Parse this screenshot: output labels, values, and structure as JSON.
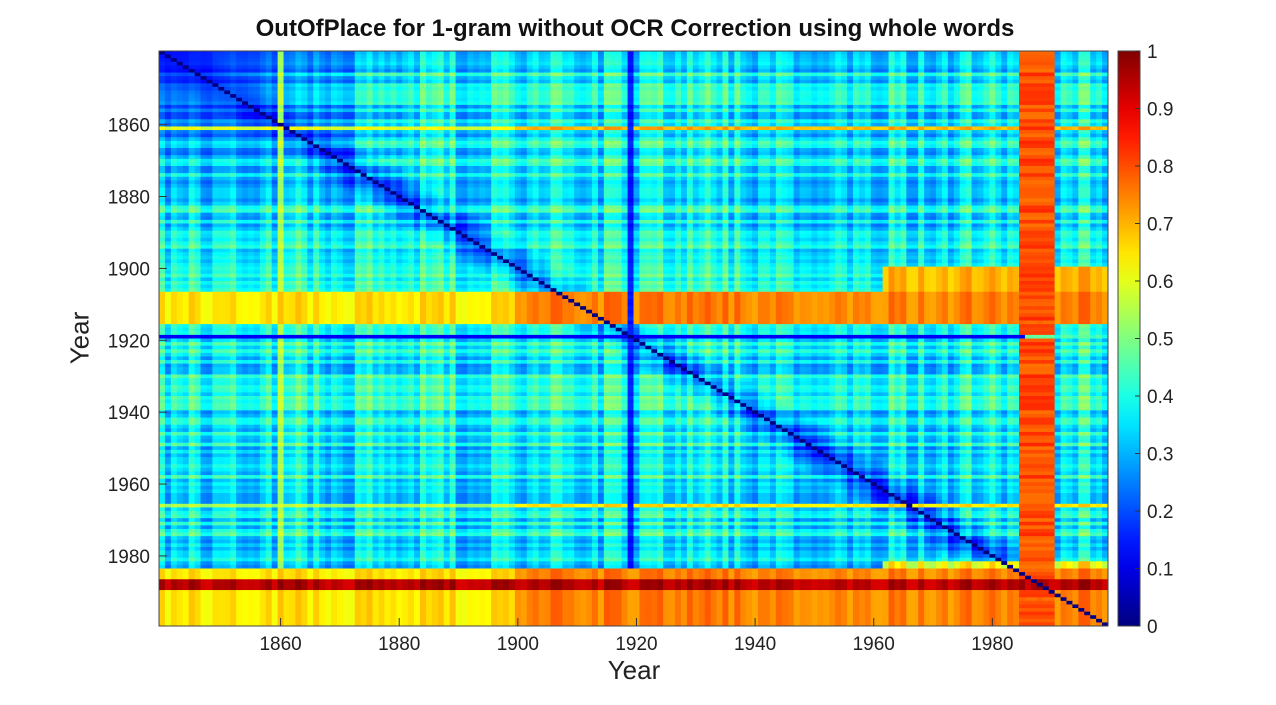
{
  "chart_data": {
    "type": "heatmap",
    "title": "OutOfPlace for 1-gram without OCR Correction using whole words",
    "xlabel": "Year",
    "ylabel": "Year",
    "x_range": [
      1840,
      1999
    ],
    "y_range": [
      1840,
      1999
    ],
    "x_ticks": [
      "1860",
      "1880",
      "1900",
      "1920",
      "1940",
      "1960",
      "1980"
    ],
    "y_ticks": [
      "1860",
      "1880",
      "1900",
      "1920",
      "1940",
      "1960",
      "1980"
    ],
    "colorbar": {
      "min": 0,
      "max": 1,
      "ticks": [
        "0",
        "0.1",
        "0.2",
        "0.3",
        "0.4",
        "0.5",
        "0.6",
        "0.7",
        "0.8",
        "0.9",
        "1"
      ],
      "colormap": "jet"
    },
    "diagonal_value": 0,
    "features": {
      "base_level": 0.38,
      "early_years_low_region": {
        "years": [
          1840,
          1880
        ],
        "value": 0.15
      },
      "low_rows": [
        {
          "year": 1919,
          "value": 0.12
        }
      ],
      "low_columns": [
        {
          "year": 1919,
          "value": 0.15
        }
      ],
      "high_columns": [
        {
          "years": [
            1985,
            1990
          ],
          "value": 0.8
        },
        {
          "year": 1860,
          "value": 0.55
        }
      ],
      "high_rows": [
        {
          "year": 1861,
          "value": 0.7
        },
        {
          "years": [
            1907,
            1915
          ],
          "value": 0.75
        },
        {
          "year": 1966,
          "value": 0.65
        },
        {
          "years": [
            1984,
            1999
          ],
          "value": 0.75
        },
        {
          "years": [
            1987,
            1989
          ],
          "value": 0.95
        }
      ]
    }
  }
}
